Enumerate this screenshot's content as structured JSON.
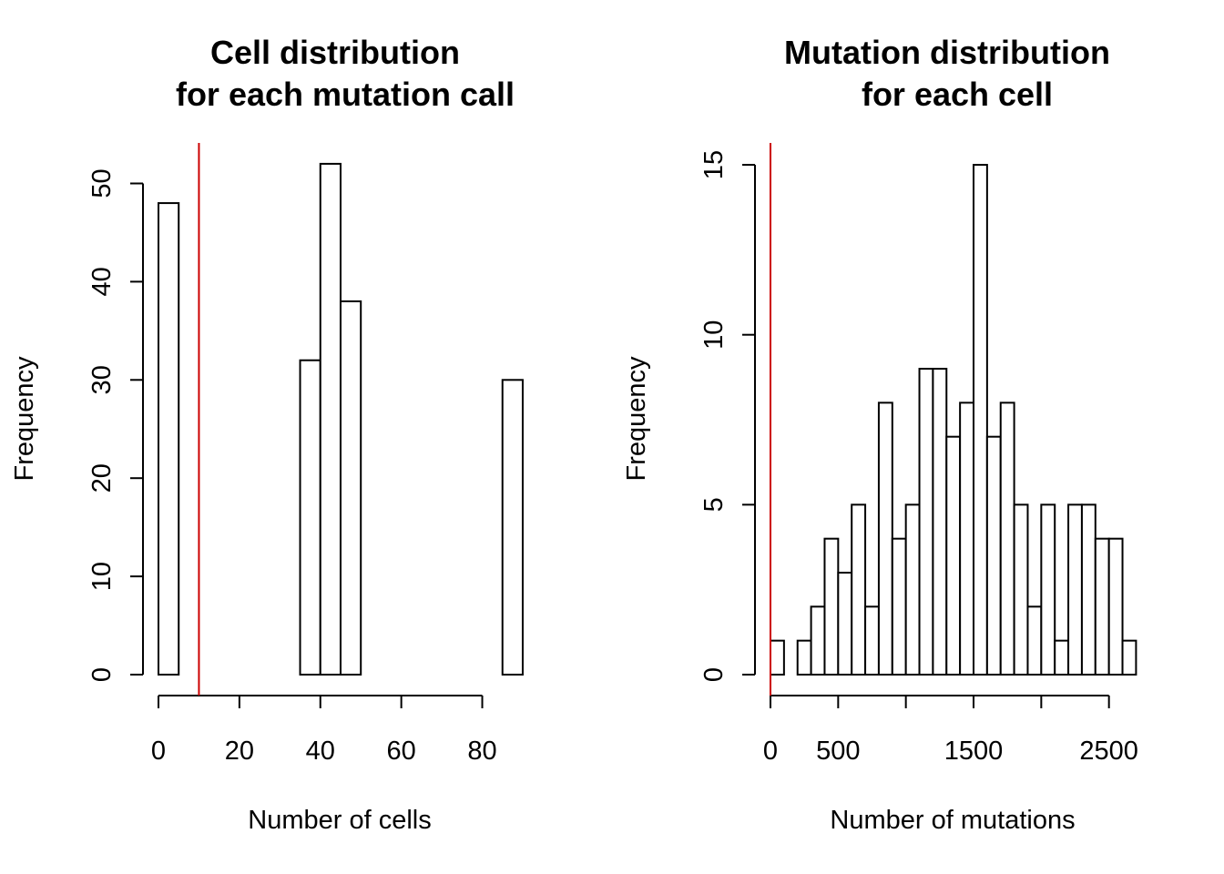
{
  "chart_data": [
    {
      "type": "bar",
      "title_line1": "Cell distribution",
      "title_line2": "for each mutation call",
      "xlabel": "Number of cells",
      "ylabel": "Frequency",
      "bin_width": 5,
      "bin_starts": [
        0,
        35,
        40,
        45,
        85
      ],
      "values": [
        48,
        32,
        52,
        38,
        30
      ],
      "xlim": [
        0,
        90
      ],
      "ylim": [
        0,
        52
      ],
      "x_ticks": [
        0,
        20,
        40,
        60,
        80
      ],
      "y_ticks": [
        0,
        10,
        20,
        30,
        40,
        50
      ],
      "ref_line_x": 10,
      "ref_line_color": "#cc0000"
    },
    {
      "type": "bar",
      "title_line1": "Mutation distribution",
      "title_line2": "for each cell",
      "xlabel": "Number of mutations",
      "ylabel": "Frequency",
      "bin_width": 100,
      "bin_starts": [
        0,
        200,
        300,
        400,
        500,
        600,
        700,
        800,
        900,
        1000,
        1100,
        1200,
        1300,
        1400,
        1500,
        1600,
        1700,
        1800,
        1900,
        2000,
        2100,
        2200,
        2300,
        2400,
        2500,
        2600
      ],
      "values": [
        1,
        1,
        2,
        4,
        3,
        5,
        2,
        8,
        4,
        5,
        9,
        9,
        7,
        8,
        15,
        7,
        8,
        5,
        2,
        5,
        1,
        5,
        5,
        4,
        4,
        1
      ],
      "xlim": [
        0,
        2700
      ],
      "ylim": [
        0,
        15
      ],
      "x_ticks": [
        0,
        500,
        1500,
        2500
      ],
      "x_axis_extent": [
        0,
        2500
      ],
      "x_axis_minor": [
        1000,
        2000
      ],
      "y_ticks": [
        0,
        5,
        10,
        15
      ],
      "ref_line_x": 0,
      "ref_line_color": "#cc0000"
    }
  ]
}
